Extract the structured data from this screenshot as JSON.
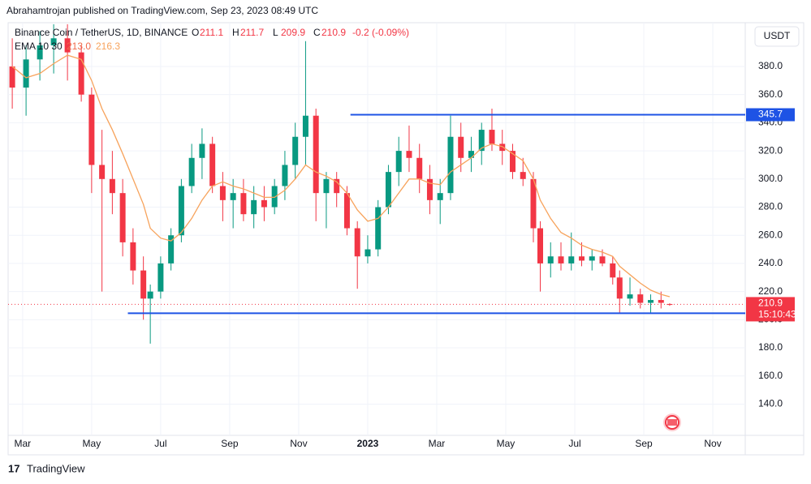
{
  "header": {
    "publisher": "Abrahamtrojan published on TradingView.com, Sep 23, 2023 08:49 UTC",
    "footer": "TradingView",
    "currency": "USDT"
  },
  "chart_data": {
    "type": "candlestick",
    "title": "Binance Coin / TetherUS, 1D, BINANCE",
    "ohlc_letters": [
      "O",
      "H",
      "L",
      "C"
    ],
    "change": "-0.2 (-0.09%)",
    "ema_name": "EMA 10 30",
    "ema_legend": [
      "213.0",
      "216.3"
    ],
    "countdown": "15:10:43",
    "up_color": "#089981",
    "down_color": "#f23645",
    "ema_color": "#f7a35c",
    "x": [
      2.7,
      3.1,
      3.5,
      3.9,
      4.3,
      4.7,
      5.0,
      5.3,
      5.6,
      5.9,
      6.2,
      6.5,
      6.7,
      7.0,
      7.3,
      7.6,
      7.9,
      8.2,
      8.5,
      8.8,
      9.1,
      9.4,
      9.7,
      10.0,
      10.3,
      10.6,
      10.9,
      11.2,
      11.5,
      11.8,
      12.1,
      12.4,
      12.7,
      13.0,
      13.3,
      13.6,
      13.9,
      14.2,
      14.5,
      14.8,
      15.1,
      15.4,
      15.7,
      16.0,
      16.3,
      16.6,
      16.9,
      17.2,
      17.5,
      17.8,
      18.0,
      18.3,
      18.6,
      18.9,
      19.2,
      19.5,
      19.8,
      20.1,
      20.3,
      20.6,
      20.9,
      21.2,
      21.5,
      21.75
    ],
    "open": [
      380,
      365,
      385,
      395,
      400,
      390,
      360,
      310,
      300,
      290,
      255,
      235,
      215,
      220,
      240,
      260,
      295,
      315,
      325,
      295,
      285,
      290,
      275,
      285,
      280,
      295,
      310,
      330,
      345,
      290,
      300,
      290,
      265,
      245,
      250,
      280,
      305,
      320,
      315,
      300,
      285,
      290,
      330,
      315,
      320,
      335,
      325,
      320,
      305,
      300,
      265,
      240,
      245,
      240,
      245,
      242,
      245,
      240,
      230,
      215,
      218,
      212,
      214,
      211.1
    ],
    "high": [
      400,
      395,
      405,
      410,
      410,
      395,
      365,
      335,
      320,
      300,
      265,
      245,
      225,
      245,
      265,
      300,
      325,
      336,
      330,
      305,
      300,
      300,
      295,
      295,
      300,
      320,
      340,
      398,
      350,
      305,
      305,
      295,
      270,
      260,
      285,
      310,
      330,
      338,
      325,
      310,
      300,
      345,
      340,
      330,
      340,
      350,
      335,
      325,
      315,
      305,
      270,
      255,
      255,
      262,
      255,
      250,
      250,
      245,
      235,
      230,
      222,
      218,
      220,
      211.7
    ],
    "low": [
      350,
      345,
      370,
      375,
      370,
      355,
      290,
      220,
      275,
      245,
      225,
      200,
      183,
      215,
      235,
      255,
      290,
      300,
      290,
      270,
      265,
      270,
      265,
      270,
      275,
      285,
      300,
      310,
      270,
      265,
      280,
      260,
      222,
      240,
      245,
      275,
      295,
      305,
      290,
      275,
      268,
      285,
      305,
      305,
      310,
      320,
      310,
      300,
      295,
      255,
      220,
      230,
      235,
      235,
      238,
      235,
      238,
      225,
      205,
      210,
      208,
      205,
      208,
      209.9
    ],
    "close": [
      365,
      385,
      395,
      400,
      390,
      360,
      310,
      300,
      290,
      255,
      235,
      215,
      220,
      240,
      260,
      295,
      315,
      325,
      295,
      285,
      290,
      275,
      285,
      280,
      295,
      310,
      330,
      345,
      290,
      300,
      290,
      265,
      245,
      250,
      280,
      305,
      320,
      315,
      300,
      285,
      290,
      330,
      315,
      320,
      335,
      325,
      320,
      305,
      300,
      265,
      240,
      245,
      240,
      245,
      242,
      245,
      240,
      230,
      215,
      218,
      212,
      214,
      212,
      210.9
    ],
    "ema": [
      380,
      372,
      375,
      382,
      388,
      385,
      370,
      350,
      335,
      318,
      300,
      282,
      265,
      258,
      256,
      262,
      272,
      285,
      295,
      298,
      295,
      293,
      290,
      287,
      287,
      292,
      300,
      310,
      305,
      302,
      298,
      290,
      278,
      270,
      272,
      280,
      290,
      300,
      300,
      297,
      296,
      305,
      310,
      315,
      322,
      325,
      323,
      318,
      313,
      300,
      285,
      272,
      262,
      258,
      253,
      250,
      248,
      245,
      238,
      232,
      226,
      221,
      218,
      216.3
    ],
    "levels": [
      {
        "value": 345.7,
        "start": 12.5,
        "color": "#1e53e5"
      },
      {
        "value": 204.6,
        "start": 6.05,
        "color": "#1e53e5"
      }
    ],
    "xlim": [
      2.58,
      23.94
    ],
    "ylim": [
      117.8,
      411.1
    ],
    "xticks": [
      {
        "value": 3,
        "label": "Mar"
      },
      {
        "value": 5,
        "label": "May"
      },
      {
        "value": 7,
        "label": "Jul"
      },
      {
        "value": 9,
        "label": "Sep"
      },
      {
        "value": 11,
        "label": "Nov"
      },
      {
        "value": 13,
        "label": "2023"
      },
      {
        "value": 15,
        "label": "Mar"
      },
      {
        "value": 17,
        "label": "May"
      },
      {
        "value": 19,
        "label": "Jul"
      },
      {
        "value": 21,
        "label": "Sep"
      },
      {
        "value": 23,
        "label": "Nov"
      }
    ],
    "yticks": [
      {
        "value": 140,
        "label": "140.0"
      },
      {
        "value": 160,
        "label": "160.0"
      },
      {
        "value": 180,
        "label": "180.0"
      },
      {
        "value": 200,
        "label": "200.0"
      },
      {
        "value": 220,
        "label": "220.0"
      },
      {
        "value": 240,
        "label": "240.0"
      },
      {
        "value": 260,
        "label": "260.0"
      },
      {
        "value": 280,
        "label": "280.0"
      },
      {
        "value": 300,
        "label": "300.0"
      },
      {
        "value": 320,
        "label": "320.0"
      },
      {
        "value": 340,
        "label": "340.0"
      },
      {
        "value": 360,
        "label": "360.0"
      },
      {
        "value": 380,
        "label": "380.0"
      }
    ],
    "grid": true
  }
}
